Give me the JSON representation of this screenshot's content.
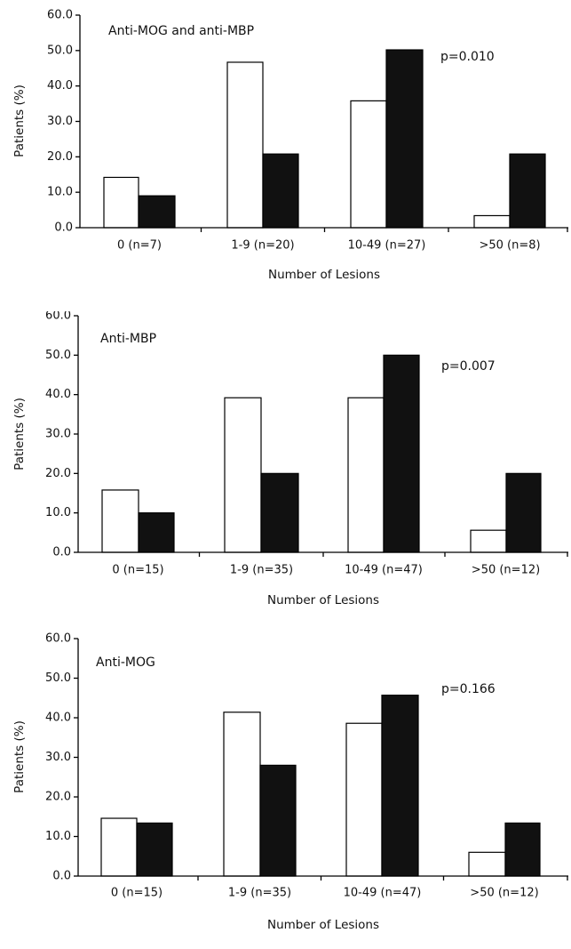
{
  "chart_data": [
    {
      "type": "bar",
      "title": "",
      "annotation": "Anti-MOG and anti-MBP",
      "p_value_label": "p=0.010",
      "xlabel": "Number of Lesions",
      "ylabel": "Patients (%)",
      "ylim": [
        0,
        60
      ],
      "yticks": [
        "0.0",
        "10.0",
        "20.0",
        "30.0",
        "40.0",
        "50.0",
        "60.0"
      ],
      "categories": [
        "0 (n=7)",
        "1-9 (n=20)",
        "10-49 (n=27)",
        ">50 (n=8)"
      ],
      "series": [
        {
          "values": [
            14.2,
            46.7,
            35.8,
            3.4
          ],
          "color": "#ffffff"
        },
        {
          "values": [
            9.0,
            20.8,
            50.2,
            20.8
          ],
          "color": "#111111"
        }
      ],
      "grid": false,
      "legend": "none"
    },
    {
      "type": "bar",
      "title": "",
      "annotation": "Anti-MBP",
      "p_value_label": "p=0.007",
      "xlabel": "Number of Lesions",
      "ylabel": "Patients (%)",
      "ylim": [
        0,
        60
      ],
      "yticks": [
        "0.0",
        "10.0",
        "20.0",
        "30.0",
        "40.0",
        "50.0",
        "60.0"
      ],
      "categories": [
        "0 (n=15)",
        "1-9 (n=35)",
        "10-49 (n=47)",
        ">50 (n=12)"
      ],
      "series": [
        {
          "values": [
            15.8,
            39.2,
            39.2,
            5.6
          ],
          "color": "#ffffff"
        },
        {
          "values": [
            10.0,
            20.0,
            50.0,
            20.0
          ],
          "color": "#111111"
        }
      ],
      "grid": false,
      "legend": "none"
    },
    {
      "type": "bar",
      "title": "",
      "annotation": "Anti-MOG",
      "p_value_label": "p=0.166",
      "xlabel": "Number of Lesions",
      "ylabel": "Patients (%)",
      "ylim": [
        0,
        60
      ],
      "yticks": [
        "0.0",
        "10.0",
        "20.0",
        "30.0",
        "40.0",
        "50.0",
        "60.0"
      ],
      "categories": [
        "0 (n=15)",
        "1-9 (n=35)",
        "10-49 (n=47)",
        ">50 (n=12)"
      ],
      "series": [
        {
          "values": [
            14.6,
            41.4,
            38.6,
            6.0
          ],
          "color": "#ffffff"
        },
        {
          "values": [
            13.4,
            28.0,
            45.7,
            13.4
          ],
          "color": "#111111"
        }
      ],
      "grid": false,
      "legend": "none"
    }
  ]
}
